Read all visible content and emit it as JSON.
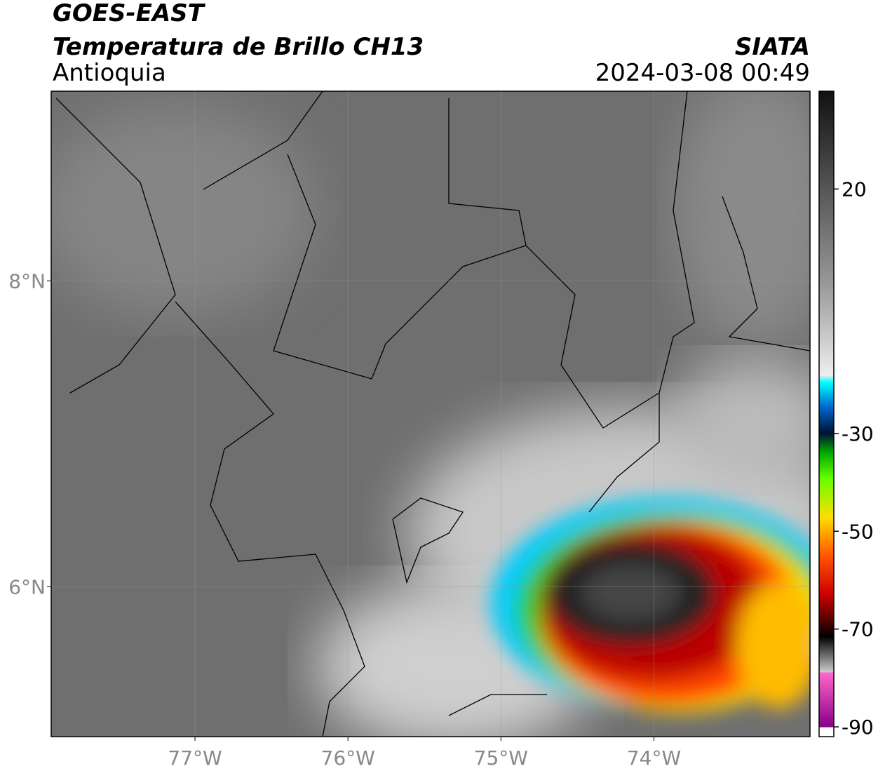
{
  "header": {
    "title": "GOES-EAST",
    "subtitle": "Temperatura de Brillo CH13",
    "region": "Antioquia",
    "source": "SIATA",
    "datetime": "2024-03-08 00:49"
  },
  "map": {
    "xlim": [
      -77.94,
      -72.98
    ],
    "ylim": [
      5.02,
      9.24
    ],
    "xticks": [
      {
        "value": -77,
        "label": "77°W"
      },
      {
        "value": -76,
        "label": "76°W"
      },
      {
        "value": -75,
        "label": "75°W"
      },
      {
        "value": -74,
        "label": "74°W"
      }
    ],
    "yticks": [
      {
        "value": 8,
        "label": "8°N"
      },
      {
        "value": 6,
        "label": "6°N"
      }
    ]
  },
  "colorbar": {
    "lim": [
      -92,
      40
    ],
    "ticks": [
      20,
      -30,
      -50,
      -70,
      -90
    ]
  }
}
